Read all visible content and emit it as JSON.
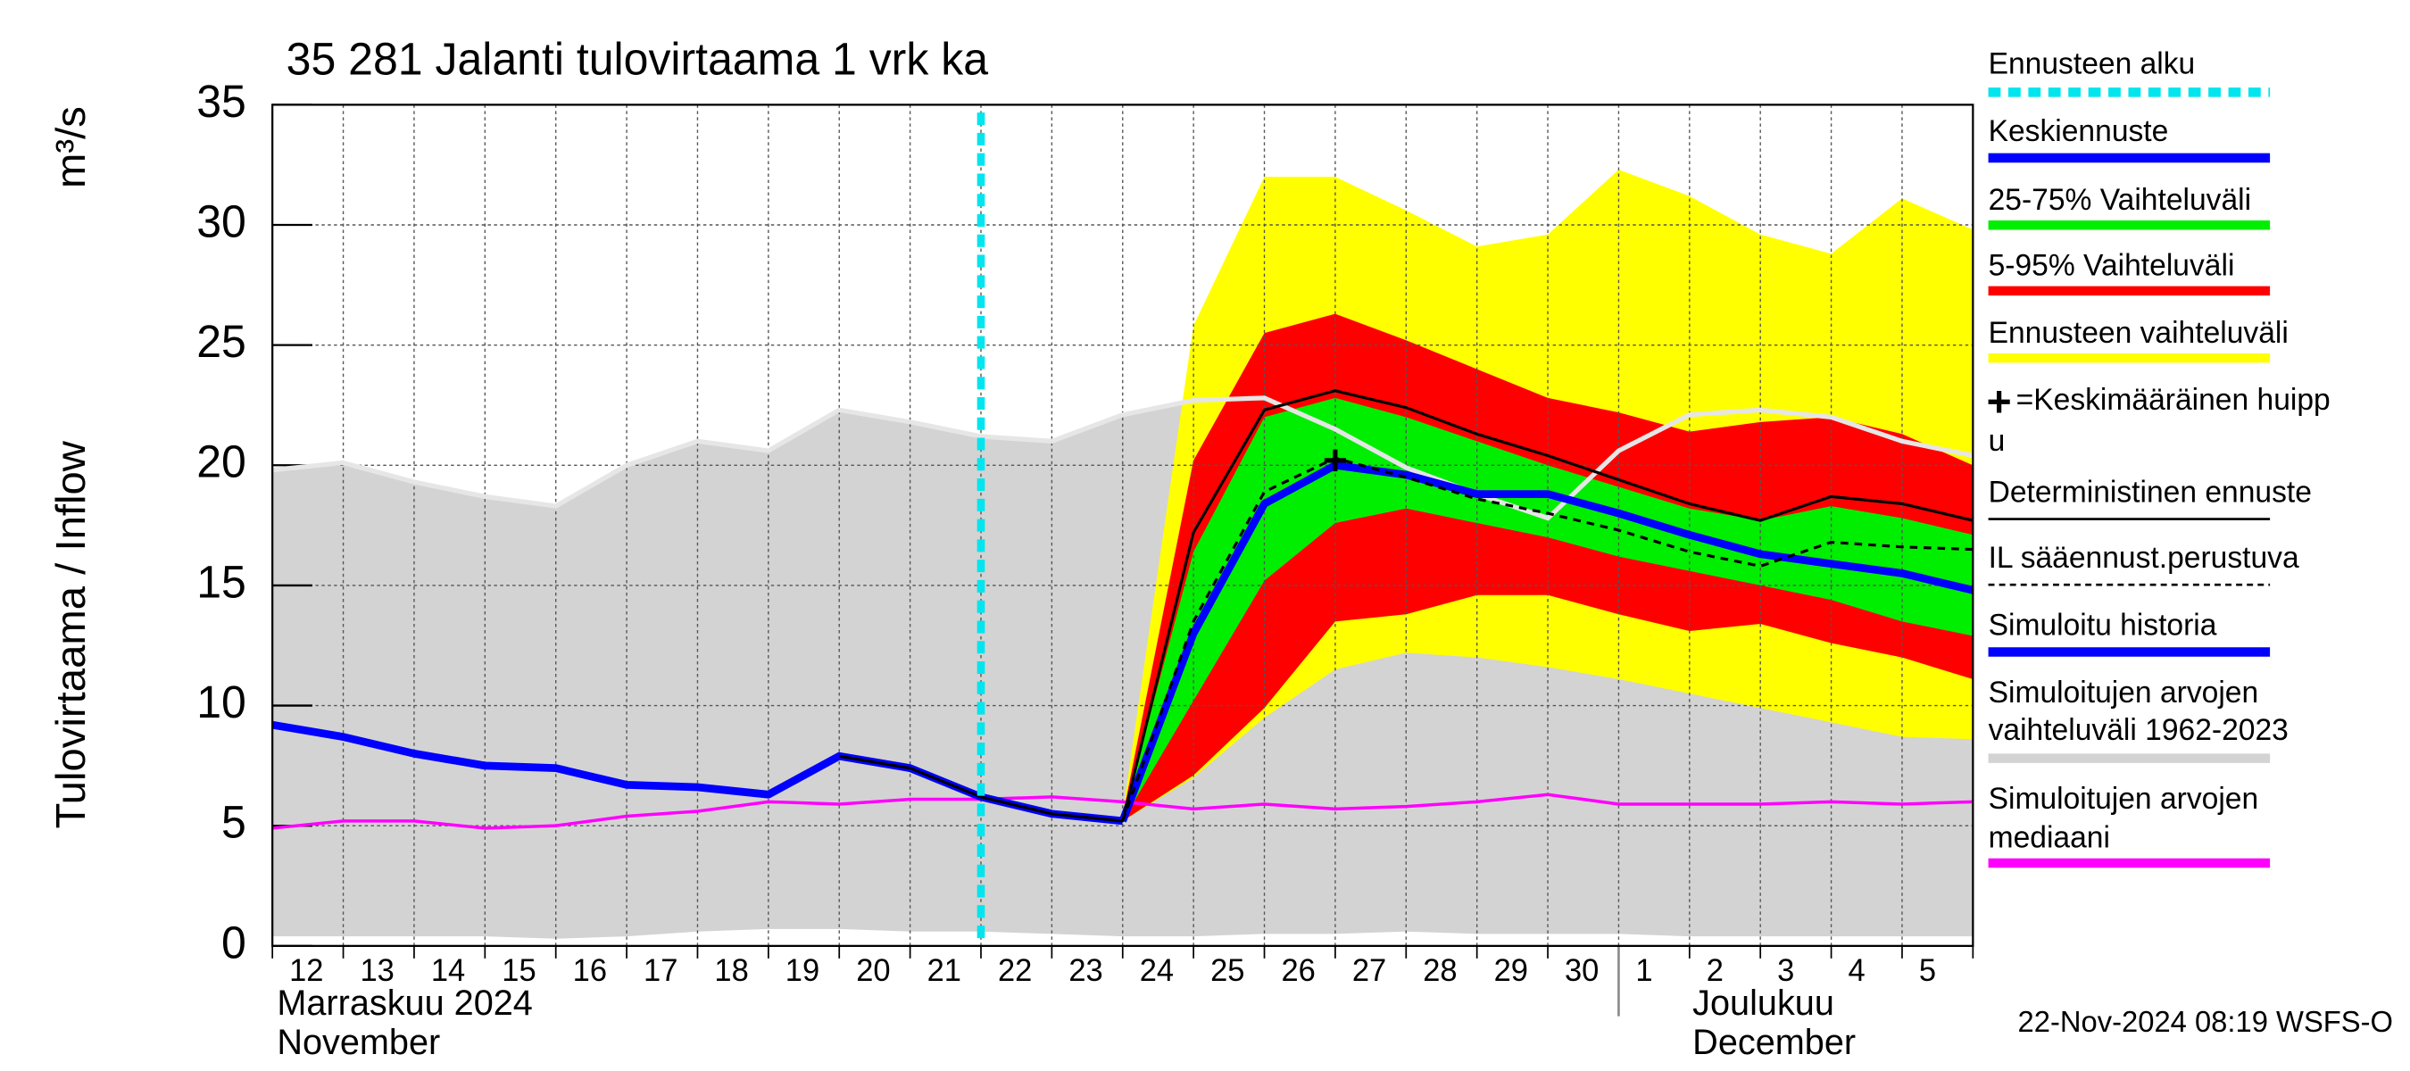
{
  "chart_data": {
    "type": "line",
    "title": "35 281 Jalanti tulovirtaama 1 vrk ka",
    "ylabel": [
      "Tulovirtaama / Inflow",
      "m³/s"
    ],
    "categories": [
      "12",
      "13",
      "14",
      "15",
      "16",
      "17",
      "18",
      "19",
      "20",
      "21",
      "22",
      "23",
      "24",
      "25",
      "26",
      "27",
      "28",
      "29",
      "30",
      "1",
      "2",
      "3",
      "4",
      "5",
      null
    ],
    "months": [
      {
        "at": "12",
        "lines": [
          "Marraskuu 2024",
          "November"
        ]
      },
      {
        "at": "1",
        "lines": [
          "Joulukuu",
          "December"
        ]
      }
    ],
    "ylim": [
      0,
      35
    ],
    "yticks": [
      0,
      5,
      10,
      15,
      20,
      25,
      30,
      35
    ],
    "grid": true,
    "footer": "22-Nov-2024 08:19 WSFS-O",
    "series": [
      {
        "name": [
          "Ennusteen alku"
        ],
        "kind": "vline",
        "color": "#00e5ee",
        "at": "22"
      },
      {
        "name": [
          "Keskiennuste"
        ],
        "kind": "line",
        "color": "#0000ff",
        "width": 5,
        "values": [
          null,
          null,
          null,
          null,
          null,
          null,
          null,
          null,
          null,
          null,
          null,
          null,
          5.2,
          13.0,
          18.4,
          20.0,
          19.6,
          18.8,
          18.8,
          18.0,
          17.1,
          16.3,
          15.9,
          15.5,
          14.8
        ]
      },
      {
        "name": [
          "25-75% Vaihteluväli"
        ],
        "kind": "band",
        "color": "#00ee00",
        "values": [
          null,
          null,
          null,
          null,
          null,
          null,
          null,
          null,
          null,
          null,
          null,
          null,
          5.3,
          16.4,
          22.0,
          22.8,
          22.0,
          21.0,
          20.0,
          19.1,
          18.2,
          17.7,
          18.3,
          17.8,
          17.1
        ],
        "lower": [
          null,
          null,
          null,
          null,
          null,
          null,
          null,
          null,
          null,
          null,
          null,
          null,
          5.2,
          10.2,
          15.2,
          17.6,
          18.2,
          17.6,
          17.0,
          16.2,
          15.6,
          15.0,
          14.4,
          13.5,
          12.9
        ]
      },
      {
        "name": [
          "5-95% Vaihteluväli"
        ],
        "kind": "band",
        "color": "#ff0000",
        "values": [
          null,
          null,
          null,
          null,
          null,
          null,
          null,
          null,
          null,
          null,
          null,
          null,
          5.4,
          20.2,
          25.5,
          26.3,
          25.2,
          24.0,
          22.8,
          22.2,
          21.4,
          21.8,
          22.0,
          21.3,
          20.0
        ],
        "lower": [
          null,
          null,
          null,
          null,
          null,
          null,
          null,
          null,
          null,
          null,
          null,
          null,
          5.2,
          7.1,
          9.9,
          13.5,
          13.8,
          14.6,
          14.6,
          13.8,
          13.1,
          13.4,
          12.6,
          12.0,
          11.1
        ]
      },
      {
        "name": [
          "Ennusteen vaihteluväli"
        ],
        "kind": "band",
        "color": "#ffff00",
        "values": [
          null,
          null,
          null,
          null,
          null,
          null,
          null,
          null,
          null,
          null,
          null,
          null,
          5.5,
          25.8,
          32.0,
          32.0,
          30.6,
          29.1,
          29.6,
          32.3,
          31.2,
          29.6,
          28.8,
          31.1,
          29.8
        ],
        "lower": [
          null,
          null,
          null,
          null,
          null,
          null,
          null,
          null,
          null,
          null,
          null,
          null,
          5.2,
          7.0,
          9.5,
          11.5,
          12.2,
          12.0,
          11.6,
          11.1,
          10.5,
          9.9,
          9.3,
          8.7,
          8.6
        ]
      },
      {
        "name": [
          "=Keskimääräinen huipp",
          "u"
        ],
        "kind": "peak",
        "color": "#000000",
        "values": [
          null,
          null,
          null,
          null,
          null,
          null,
          null,
          null,
          null,
          null,
          null,
          null,
          null,
          null,
          null,
          20.2,
          null,
          null,
          null,
          null,
          null,
          null,
          null,
          null,
          null
        ]
      },
      {
        "name": [
          "Deterministinen ennuste"
        ],
        "kind": "line",
        "color": "#000000",
        "width": 1.8,
        "values": [
          null,
          null,
          null,
          null,
          null,
          null,
          null,
          null,
          7.9,
          7.4,
          6.2,
          5.5,
          5.2,
          17.2,
          22.3,
          23.1,
          22.4,
          21.3,
          20.4,
          19.4,
          18.4,
          17.7,
          18.7,
          18.4,
          17.7
        ]
      },
      {
        "name": [
          "IL sääennust.perustuva"
        ],
        "kind": "dashed",
        "color": "#000000",
        "width": 1.8,
        "values": [
          null,
          null,
          null,
          null,
          null,
          null,
          null,
          null,
          null,
          null,
          null,
          null,
          5.2,
          13.5,
          18.9,
          20.3,
          19.5,
          18.6,
          18.0,
          17.3,
          16.4,
          15.8,
          16.8,
          16.6,
          16.5
        ]
      },
      {
        "name": [
          "Simuloitu historia"
        ],
        "kind": "line",
        "color": "#0000ff",
        "width": 5,
        "values": [
          9.2,
          8.7,
          8.0,
          7.5,
          7.4,
          6.7,
          6.6,
          6.3,
          7.9,
          7.4,
          6.2,
          5.5,
          5.2,
          null,
          null,
          null,
          null,
          null,
          null,
          null,
          null,
          null,
          null,
          null,
          null
        ]
      },
      {
        "name": [
          "Simuloitujen arvojen",
          "vaihteluväli 1962-2023"
        ],
        "kind": "band",
        "color": "#d3d3d3",
        "edge": "#e6e6e6",
        "values": [
          19.8,
          20.1,
          19.3,
          18.7,
          18.3,
          20.0,
          21.0,
          20.6,
          22.3,
          21.8,
          21.2,
          21.0,
          22.1,
          22.7,
          22.8,
          21.5,
          19.9,
          18.8,
          17.8,
          20.6,
          22.1,
          22.3,
          22.0,
          21.0,
          20.4
        ],
        "lower": [
          0.4,
          0.4,
          0.4,
          0.4,
          0.3,
          0.4,
          0.6,
          0.7,
          0.7,
          0.6,
          0.6,
          0.5,
          0.4,
          0.4,
          0.5,
          0.5,
          0.6,
          0.5,
          0.5,
          0.5,
          0.4,
          0.4,
          0.4,
          0.4,
          0.4
        ]
      },
      {
        "name": [
          "Simuloitujen arvojen",
          "mediaani"
        ],
        "kind": "line",
        "color": "#ff00ff",
        "width": 2,
        "values": [
          4.9,
          5.2,
          5.2,
          4.9,
          5.0,
          5.4,
          5.6,
          6.0,
          5.9,
          6.1,
          6.1,
          6.2,
          6.0,
          5.7,
          5.9,
          5.7,
          5.8,
          6.0,
          6.3,
          5.9,
          5.9,
          5.9,
          6.0,
          5.9,
          6.0
        ]
      }
    ]
  }
}
